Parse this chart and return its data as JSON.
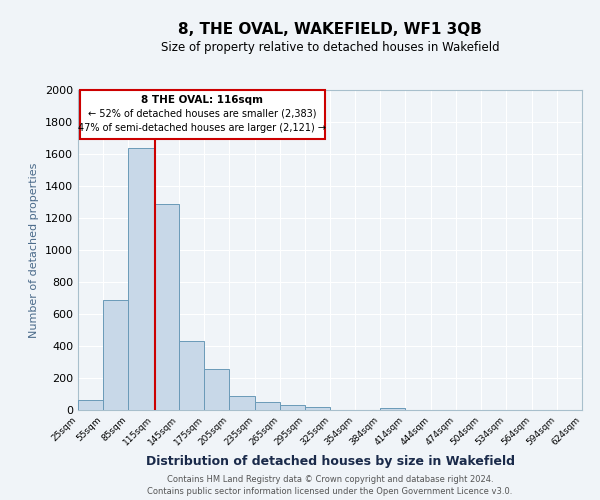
{
  "title": "8, THE OVAL, WAKEFIELD, WF1 3QB",
  "subtitle": "Size of property relative to detached houses in Wakefield",
  "xlabel": "Distribution of detached houses by size in Wakefield",
  "ylabel": "Number of detached properties",
  "bar_color": "#c8d8e8",
  "bar_edge_color": "#6a9ab8",
  "background_color": "#f0f4f8",
  "grid_color": "#ffffff",
  "annotation_border_color": "#cc0000",
  "vline_color": "#cc0000",
  "vline_x": 116,
  "annotation_text_line1": "8 THE OVAL: 116sqm",
  "annotation_text_line2": "← 52% of detached houses are smaller (2,383)",
  "annotation_text_line3": "47% of semi-detached houses are larger (2,121) →",
  "bins": [
    25,
    55,
    85,
    115,
    145,
    175,
    205,
    235,
    265,
    295,
    325,
    354,
    384,
    414,
    444,
    474,
    504,
    534,
    564,
    594,
    624
  ],
  "values": [
    65,
    690,
    1640,
    1285,
    430,
    255,
    85,
    50,
    30,
    20,
    0,
    0,
    15,
    0,
    0,
    0,
    0,
    0,
    0,
    0
  ],
  "ylim": [
    0,
    2000
  ],
  "yticks": [
    0,
    200,
    400,
    600,
    800,
    1000,
    1200,
    1400,
    1600,
    1800,
    2000
  ],
  "xtick_labels": [
    "25sqm",
    "55sqm",
    "85sqm",
    "115sqm",
    "145sqm",
    "175sqm",
    "205sqm",
    "235sqm",
    "265sqm",
    "295sqm",
    "325sqm",
    "354sqm",
    "384sqm",
    "414sqm",
    "444sqm",
    "474sqm",
    "504sqm",
    "534sqm",
    "564sqm",
    "594sqm",
    "624sqm"
  ],
  "footer_line1": "Contains HM Land Registry data © Crown copyright and database right 2024.",
  "footer_line2": "Contains public sector information licensed under the Open Government Licence v3.0."
}
